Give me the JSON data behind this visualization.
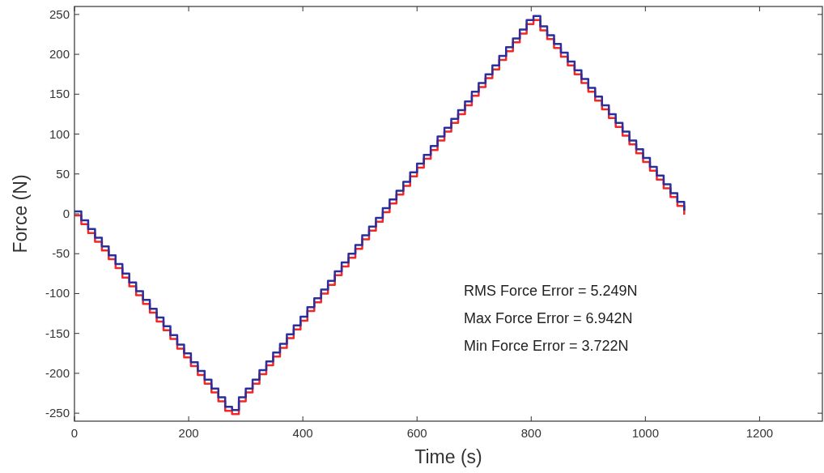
{
  "chart_data": {
    "type": "step",
    "xlabel": "Time (s)",
    "ylabel": "Force (N)",
    "xlim": [
      0,
      1310
    ],
    "xticks": [
      0,
      200,
      400,
      600,
      800,
      1000,
      1200
    ],
    "ylim": [
      -260,
      260
    ],
    "yticks": [
      -250,
      -200,
      -150,
      -100,
      -50,
      0,
      50,
      100,
      150,
      200,
      250
    ],
    "x": [
      0,
      12,
      24,
      36,
      48,
      60,
      72,
      84,
      96,
      108,
      120,
      132,
      144,
      156,
      168,
      180,
      192,
      204,
      216,
      228,
      240,
      252,
      264,
      276,
      288,
      300,
      312,
      324,
      336,
      348,
      360,
      372,
      384,
      396,
      408,
      420,
      432,
      444,
      456,
      468,
      480,
      492,
      504,
      516,
      528,
      540,
      552,
      564,
      576,
      588,
      600,
      612,
      624,
      636,
      648,
      660,
      672,
      684,
      696,
      708,
      720,
      732,
      744,
      756,
      768,
      780,
      792,
      804,
      816,
      828,
      840,
      852,
      864,
      876,
      888,
      900,
      912,
      924,
      936,
      948,
      960,
      972,
      984,
      996,
      1008,
      1020,
      1032,
      1044,
      1056,
      1068
    ],
    "series": [
      {
        "color": "#f02828",
        "values": [
          -2,
          -13,
          -24,
          -35,
          -46,
          -57,
          -68,
          -80,
          -91,
          -102,
          -113,
          -124,
          -135,
          -146,
          -157,
          -169,
          -180,
          -191,
          -202,
          -213,
          -224,
          -235,
          -247,
          -251,
          -235,
          -224,
          -213,
          -201,
          -190,
          -179,
          -168,
          -156,
          -145,
          -134,
          -122,
          -111,
          -100,
          -89,
          -77,
          -66,
          -55,
          -44,
          -32,
          -21,
          -10,
          2,
          13,
          24,
          35,
          47,
          58,
          69,
          80,
          92,
          103,
          114,
          125,
          136,
          148,
          159,
          170,
          181,
          193,
          204,
          215,
          226,
          238,
          243,
          230,
          219,
          208,
          197,
          186,
          175,
          164,
          153,
          142,
          131,
          120,
          109,
          98,
          87,
          76,
          65,
          54,
          43,
          32,
          21,
          10,
          -1
        ]
      },
      {
        "color": "#2b2e9b",
        "values": [
          3,
          -8,
          -19,
          -30,
          -41,
          -52,
          -63,
          -75,
          -86,
          -97,
          -108,
          -119,
          -130,
          -141,
          -152,
          -164,
          -175,
          -186,
          -197,
          -208,
          -219,
          -230,
          -242,
          -246,
          -230,
          -219,
          -208,
          -196,
          -185,
          -174,
          -163,
          -151,
          -140,
          -129,
          -117,
          -106,
          -95,
          -84,
          -72,
          -61,
          -50,
          -39,
          -27,
          -16,
          -5,
          7,
          18,
          29,
          40,
          52,
          63,
          74,
          85,
          97,
          108,
          119,
          130,
          141,
          153,
          164,
          175,
          186,
          198,
          209,
          220,
          231,
          243,
          248,
          235,
          224,
          213,
          202,
          191,
          180,
          169,
          158,
          147,
          136,
          125,
          114,
          103,
          92,
          81,
          70,
          59,
          48,
          37,
          26,
          15,
          4
        ]
      }
    ],
    "annotations": [
      "RMS Force Error = 5.249N",
      "Max Force Error = 6.942N",
      "Min Force Error = 3.722N"
    ]
  }
}
